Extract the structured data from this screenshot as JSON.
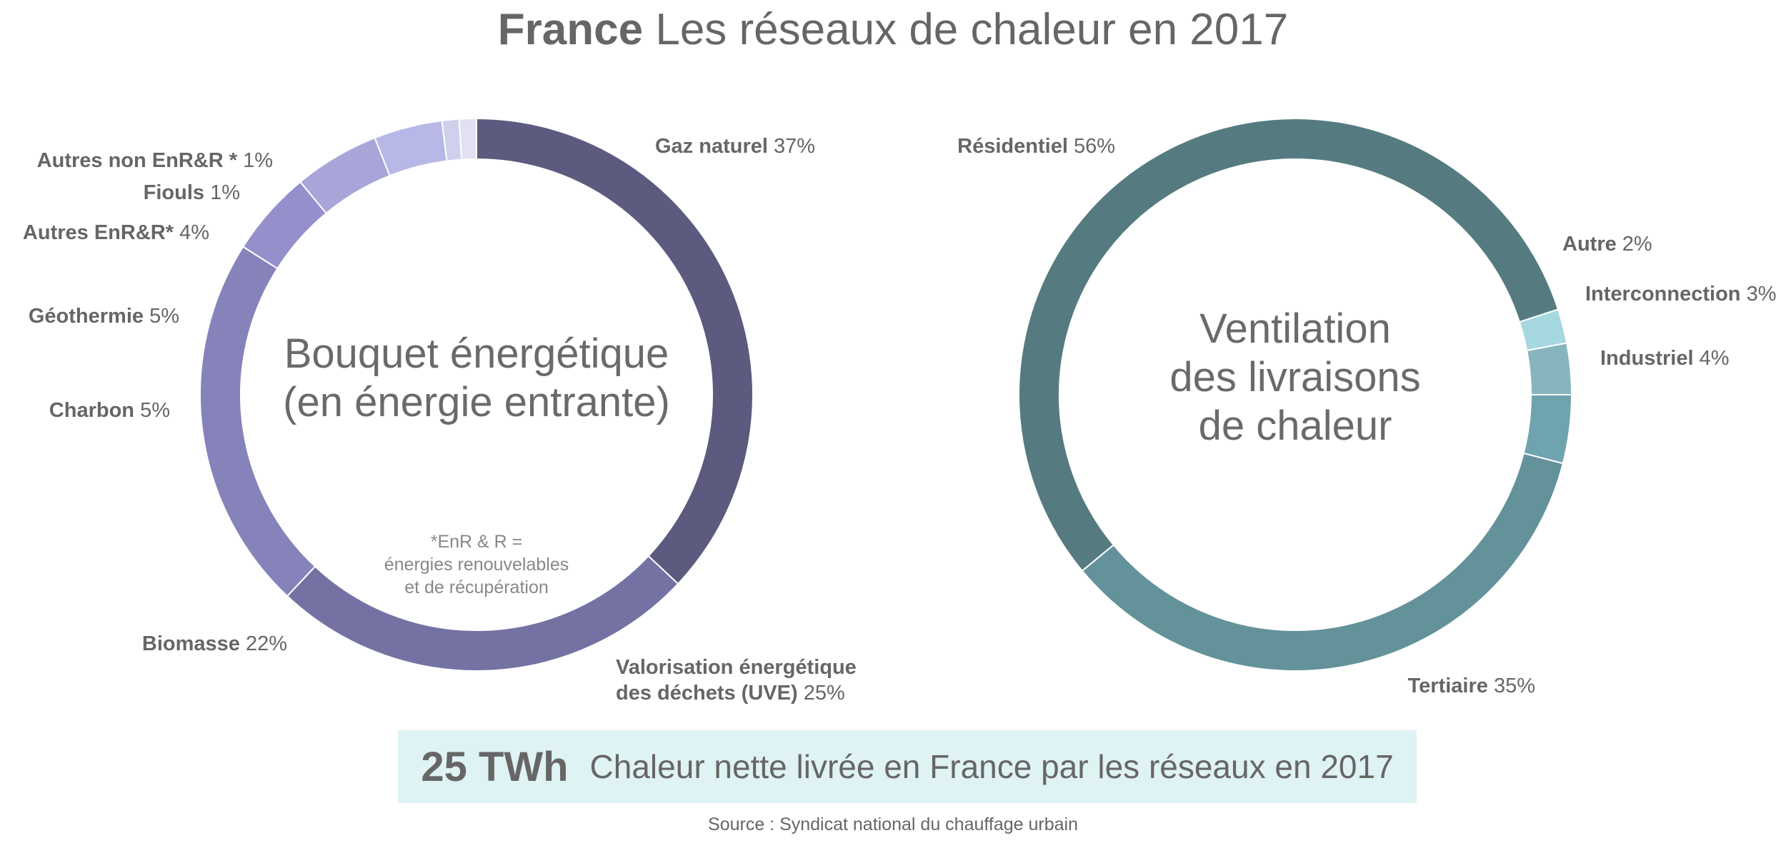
{
  "title": {
    "bold": "France",
    "rest": "Les réseaux de chaleur en 2017"
  },
  "chart_data": [
    {
      "type": "pie",
      "variant": "donut",
      "center_label": [
        "Bouquet énergétique",
        "(en énergie entrante)"
      ],
      "note": [
        "*EnR & R =",
        "énergies renouvelables",
        "et de récupération"
      ],
      "unit": "%",
      "slices": [
        {
          "name": "Gaz naturel",
          "value": 37,
          "color": "#5c5a7f"
        },
        {
          "name": "Valorisation énergétique des déchets (UVE)",
          "name_lines": [
            "Valorisation énergétique",
            "des déchets (UVE)"
          ],
          "value": 25,
          "color": "#7472a3"
        },
        {
          "name": "Biomasse",
          "value": 22,
          "color": "#8683ba"
        },
        {
          "name": "Charbon",
          "value": 5,
          "color": "#9590cc"
        },
        {
          "name": "Géothermie",
          "value": 5,
          "color": "#a8a5d9"
        },
        {
          "name": "Autres EnR&R*",
          "value": 4,
          "color": "#b8b8e8"
        },
        {
          "name": "Fiouls",
          "value": 1,
          "color": "#d0cfec"
        },
        {
          "name": "Autres non EnR&R *",
          "value": 1,
          "color": "#e2e1f2"
        }
      ]
    },
    {
      "type": "pie",
      "variant": "donut",
      "center_label": [
        "Ventilation",
        "des livraisons",
        "de chaleur"
      ],
      "unit": "%",
      "slices": [
        {
          "name": "Industriel",
          "value": 4,
          "color": "#6fa4af"
        },
        {
          "name": "Tertiaire",
          "value": 35,
          "color": "#63929a"
        },
        {
          "name": "Résidentiel",
          "value": 56,
          "color": "#557b80"
        },
        {
          "name": "Autre",
          "value": 2,
          "color": "#a6d8e0"
        },
        {
          "name": "Interconnection",
          "value": 3,
          "color": "#87b5be"
        }
      ]
    }
  ],
  "summary": {
    "value": "25 TWh",
    "text": "Chaleur nette livrée en France par les réseaux en 2017"
  },
  "source": "Source : Syndicat national du chauffage urbain"
}
